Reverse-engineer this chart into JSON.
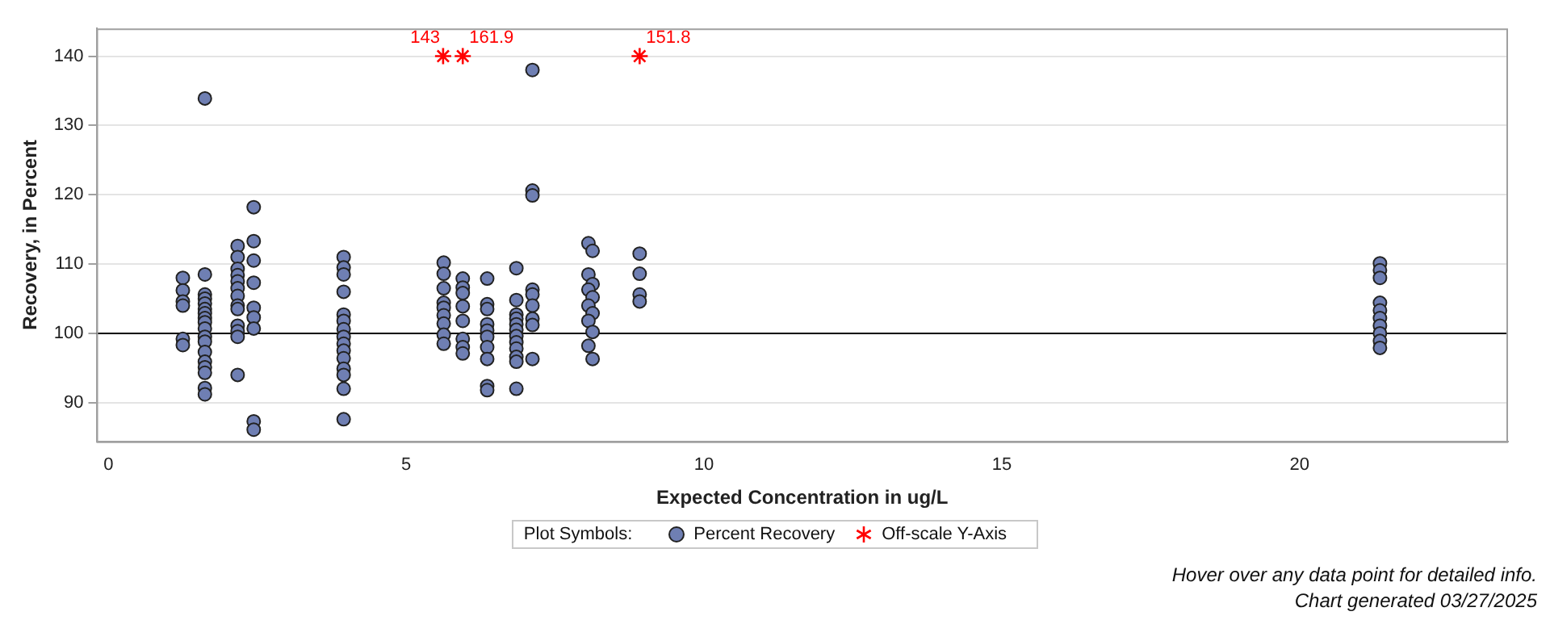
{
  "chart_data": {
    "type": "scatter",
    "xlabel": "Expected Concentration in ug/L",
    "ylabel": "Recovery, in Percent",
    "xlim": [
      -0.2,
      23.5
    ],
    "xticks": [
      0,
      5,
      10,
      15,
      20
    ],
    "ylim": [
      84.4,
      144
    ],
    "yticks": [
      90,
      100,
      110,
      120,
      130,
      140
    ],
    "grid": "y",
    "legend": "bottom",
    "legend_title": "Plot Symbols:",
    "ref_lines": [
      {
        "axis": "y",
        "value": 100,
        "color": "#000000"
      }
    ],
    "annotations": [
      {
        "text": "143",
        "x": 5.62,
        "y": 140
      },
      {
        "text": "161.9",
        "x": 5.95,
        "y": 140
      },
      {
        "text": "151.8",
        "x": 8.92,
        "y": 140
      },
      "Hover over any data point for detailed info.",
      "Chart generated 03/27/2025"
    ],
    "series": [
      {
        "name": "Percent Recovery",
        "color": "#6f7fb3",
        "marker": "circle",
        "x": [
          1.25,
          1.25,
          1.25,
          1.25,
          1.25,
          1.25,
          1.62,
          1.62,
          1.62,
          1.62,
          1.62,
          1.62,
          1.62,
          1.62,
          1.62,
          1.62,
          1.62,
          1.62,
          1.62,
          1.62,
          1.62,
          1.62,
          1.62,
          1.62,
          2.17,
          2.17,
          2.17,
          2.17,
          2.17,
          2.17,
          2.17,
          2.17,
          2.17,
          2.17,
          2.17,
          2.17,
          2.17,
          2.44,
          2.44,
          2.44,
          2.44,
          2.44,
          2.44,
          2.44,
          2.44,
          2.44,
          3.95,
          3.95,
          3.95,
          3.95,
          3.95,
          3.95,
          3.95,
          3.95,
          3.95,
          3.95,
          3.95,
          3.95,
          3.95,
          3.95,
          3.95,
          5.63,
          5.63,
          5.63,
          5.63,
          5.63,
          5.63,
          5.63,
          5.63,
          5.63,
          5.95,
          5.95,
          5.95,
          5.95,
          5.95,
          5.95,
          5.95,
          5.95,
          6.36,
          6.36,
          6.36,
          6.36,
          6.36,
          6.36,
          6.36,
          6.36,
          6.36,
          6.36,
          6.85,
          6.85,
          6.85,
          6.85,
          6.85,
          6.85,
          6.85,
          6.85,
          6.85,
          6.85,
          6.85,
          6.85,
          7.12,
          7.12,
          7.12,
          7.12,
          7.12,
          7.12,
          7.12,
          7.12,
          7.12,
          8.06,
          8.13,
          8.06,
          8.13,
          8.06,
          8.13,
          8.06,
          8.13,
          8.06,
          8.13,
          8.06,
          8.13,
          8.92,
          8.92,
          8.92,
          8.92,
          21.35,
          21.35,
          21.35,
          21.35,
          21.35,
          21.35,
          21.35,
          21.35,
          21.35,
          21.35
        ],
        "values": [
          108.0,
          106.2,
          104.6,
          104.0,
          99.2,
          98.3,
          133.9,
          108.5,
          105.6,
          105.0,
          104.3,
          103.5,
          102.9,
          102.2,
          101.6,
          100.7,
          99.5,
          98.8,
          97.3,
          95.9,
          95.1,
          94.3,
          92.1,
          91.2,
          112.6,
          111.0,
          109.3,
          108.4,
          107.5,
          106.5,
          105.4,
          104.0,
          103.5,
          101.1,
          100.3,
          99.5,
          94.0,
          118.2,
          113.3,
          110.5,
          107.3,
          103.7,
          102.3,
          100.7,
          87.3,
          86.1,
          111.0,
          109.5,
          108.5,
          106.0,
          102.7,
          101.8,
          100.6,
          99.5,
          98.5,
          97.5,
          96.4,
          94.9,
          94.0,
          92.0,
          87.6,
          110.2,
          108.6,
          106.5,
          104.4,
          103.7,
          102.6,
          101.4,
          99.8,
          98.5,
          107.9,
          106.6,
          105.8,
          103.9,
          101.8,
          99.2,
          98.0,
          97.1,
          107.9,
          104.2,
          103.5,
          101.3,
          100.4,
          99.5,
          98.0,
          96.3,
          92.4,
          91.8,
          109.4,
          104.8,
          102.7,
          102.1,
          101.3,
          100.5,
          99.6,
          98.7,
          97.8,
          96.6,
          95.9,
          92.0,
          138.0,
          120.6,
          119.9,
          106.3,
          105.6,
          104.0,
          102.1,
          101.2,
          96.3,
          113.0,
          111.9,
          108.5,
          107.1,
          106.3,
          105.2,
          104.0,
          102.9,
          101.8,
          100.2,
          98.2,
          96.3,
          111.5,
          108.6,
          105.6,
          104.6,
          110.1,
          109.1,
          108.0,
          104.4,
          103.3,
          102.2,
          101.1,
          100.0,
          98.9,
          97.9
        ]
      },
      {
        "name": "Off-scale Y-Axis",
        "color": "#ff0000",
        "marker": "cross",
        "x": [
          5.62,
          5.95,
          8.92
        ],
        "values": [
          140,
          140,
          140
        ]
      }
    ]
  }
}
